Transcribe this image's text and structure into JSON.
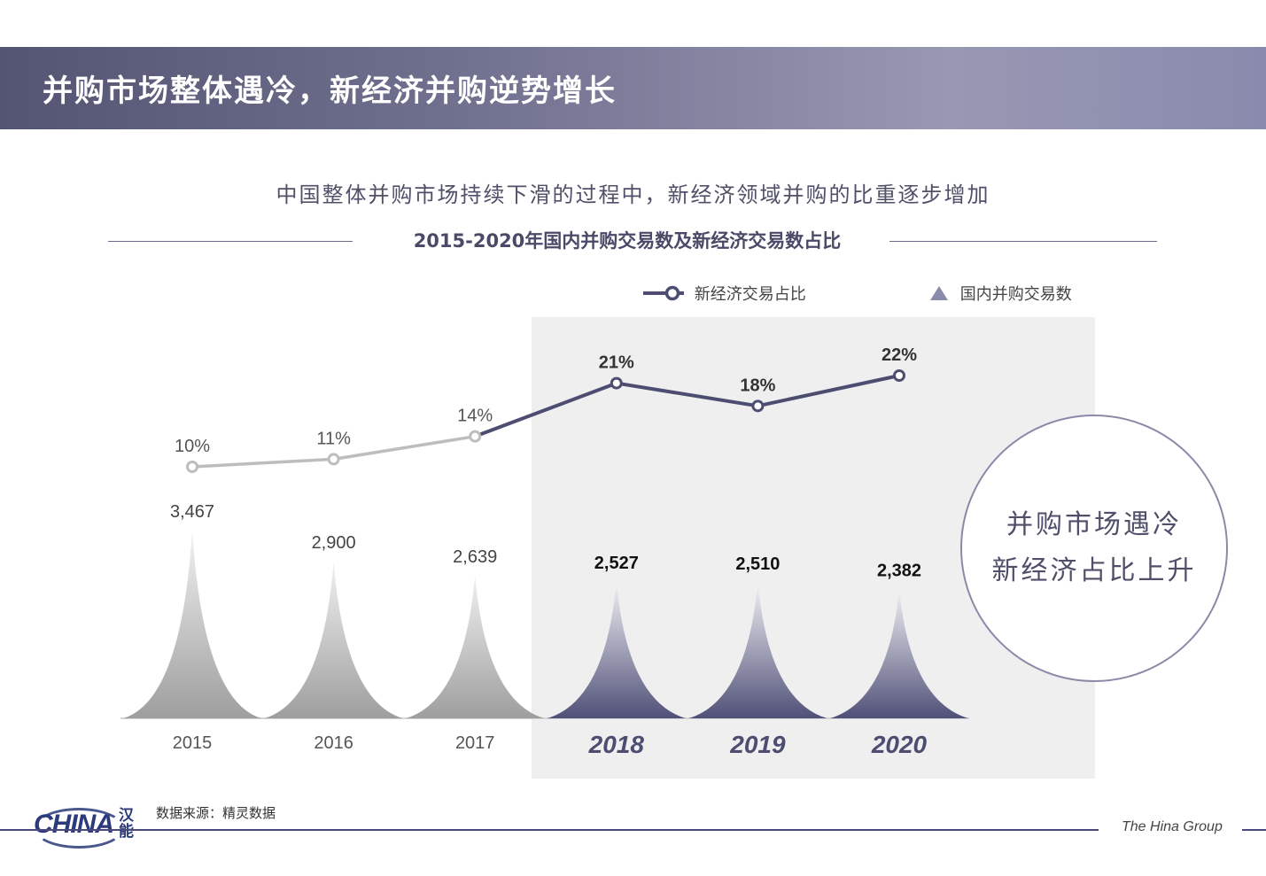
{
  "header": {
    "title": "并购市场整体遇冷，新经济并购逆势增长"
  },
  "subtitle": "中国整体并购市场持续下滑的过程中，新经济领域并购的比重逐步增加",
  "chart_title": "2015-2020年国内并购交易数及新经济交易数占比",
  "legend": {
    "line_label": "新经济交易占比",
    "bar_label": "国内并购交易数"
  },
  "takeaway": {
    "line1": "并购市场遇冷",
    "line2": "新经济占比上升"
  },
  "footer": {
    "source": "数据来源：精灵数据",
    "brand": "The Hina Group",
    "logo_text": "HINA",
    "logo_cn": "汉能"
  },
  "colors": {
    "accent": "#4d4d72",
    "muted": "#bdbdbd",
    "highlight_bg": "#efeff0"
  },
  "chart_data": {
    "type": "bar",
    "title": "2015-2020年国内并购交易数及新经济交易数占比",
    "categories": [
      "2015",
      "2016",
      "2017",
      "2018",
      "2019",
      "2020"
    ],
    "highlighted_categories": [
      "2018",
      "2019",
      "2020"
    ],
    "series": [
      {
        "name": "国内并购交易数",
        "type": "bar",
        "values": [
          3467,
          2900,
          2639,
          2527,
          2510,
          2382
        ],
        "labels": [
          "3,467",
          "2,900",
          "2,639",
          "2,527",
          "2,510",
          "2,382"
        ]
      },
      {
        "name": "新经济交易占比",
        "type": "line",
        "unit": "%",
        "values": [
          10,
          11,
          14,
          21,
          18,
          22
        ],
        "labels": [
          "10%",
          "11%",
          "14%",
          "21%",
          "18%",
          "22%"
        ]
      }
    ],
    "bar_ylim": [
      0,
      3467
    ],
    "line_ylim": [
      10,
      22
    ],
    "legend_position": "top-right"
  }
}
